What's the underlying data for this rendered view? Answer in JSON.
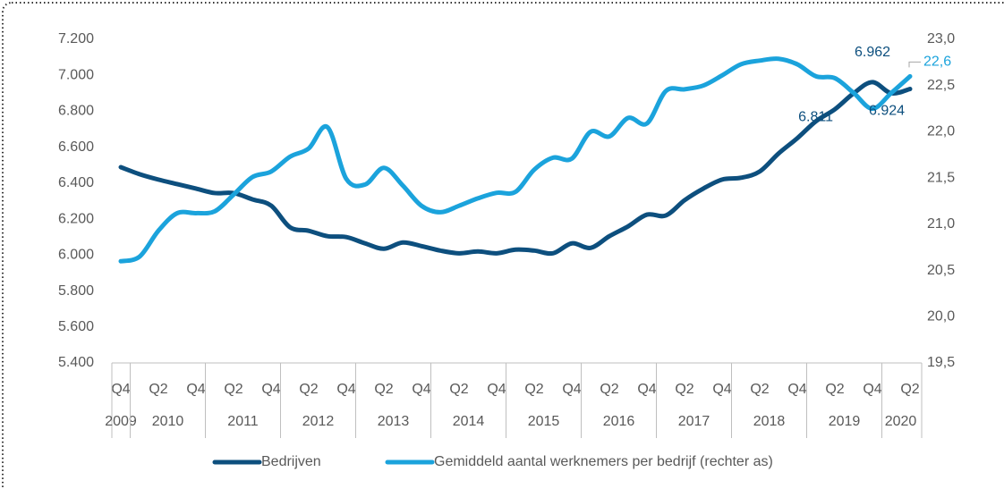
{
  "chart_data": {
    "type": "line",
    "categories": [
      "Q4",
      null,
      "Q2",
      null,
      "Q4",
      null,
      "Q2",
      null,
      "Q4",
      null,
      "Q2",
      null,
      "Q4",
      null,
      "Q2",
      null,
      "Q4",
      null,
      "Q2",
      null,
      "Q4",
      null,
      "Q2",
      null,
      "Q4",
      null,
      "Q2",
      null,
      "Q4",
      null,
      "Q2",
      null,
      "Q4",
      null,
      "Q2",
      null,
      "Q4",
      null,
      "Q2",
      null,
      "Q4",
      null,
      "Q2"
    ],
    "year_groups": [
      "2009",
      "2010",
      "2011",
      "2012",
      "2013",
      "2014",
      "2015",
      "2016",
      "2017",
      "2018",
      "2019",
      "2020"
    ],
    "series": [
      {
        "name": "Bedrijven",
        "color": "#0d4f7e",
        "axis": "y",
        "values": [
          6489,
          6450,
          6420,
          6395,
          6370,
          6345,
          6345,
          6310,
          6275,
          6155,
          6135,
          6105,
          6100,
          6065,
          6035,
          6070,
          6050,
          6025,
          6010,
          6020,
          6010,
          6030,
          6025,
          6010,
          6065,
          6040,
          6105,
          6160,
          6225,
          6220,
          6305,
          6370,
          6420,
          6430,
          6465,
          6565,
          6650,
          6745,
          6811,
          6900,
          6962,
          6900,
          6924
        ],
        "value_labels": [
          null,
          null,
          null,
          null,
          null,
          null,
          null,
          null,
          null,
          null,
          null,
          null,
          null,
          null,
          null,
          null,
          null,
          null,
          null,
          null,
          null,
          null,
          null,
          null,
          null,
          null,
          null,
          null,
          null,
          null,
          null,
          null,
          null,
          null,
          null,
          null,
          null,
          null,
          "6.811",
          null,
          "6.962",
          null,
          "6.924"
        ]
      },
      {
        "name": "Gemiddeld aantal werknemers per bedrijf (rechter as)",
        "color": "#1ba3dc",
        "axis": "y2",
        "values": [
          20.6,
          20.65,
          20.93,
          21.12,
          21.12,
          21.14,
          21.32,
          21.51,
          21.57,
          21.73,
          21.82,
          22.05,
          21.49,
          21.43,
          21.61,
          21.42,
          21.2,
          21.13,
          21.2,
          21.28,
          21.34,
          21.35,
          21.59,
          21.72,
          21.71,
          22.0,
          21.95,
          22.15,
          22.09,
          22.44,
          22.46,
          22.5,
          22.61,
          22.73,
          22.77,
          22.79,
          22.73,
          22.6,
          22.58,
          22.42,
          22.25,
          22.42,
          22.6
        ],
        "value_labels": [
          null,
          null,
          null,
          null,
          null,
          null,
          null,
          null,
          null,
          null,
          null,
          null,
          null,
          null,
          null,
          null,
          null,
          null,
          null,
          null,
          null,
          null,
          null,
          null,
          null,
          null,
          null,
          null,
          null,
          null,
          null,
          null,
          null,
          null,
          null,
          null,
          null,
          null,
          null,
          null,
          null,
          null,
          "22,6"
        ]
      }
    ],
    "ylim": [
      5400,
      7200
    ],
    "yticks": [
      {
        "value": 5400,
        "label": "5.400"
      },
      {
        "value": 5600,
        "label": "5.600"
      },
      {
        "value": 5800,
        "label": "5.800"
      },
      {
        "value": 6000,
        "label": "6.000"
      },
      {
        "value": 6200,
        "label": "6.200"
      },
      {
        "value": 6400,
        "label": "6.400"
      },
      {
        "value": 6600,
        "label": "6.600"
      },
      {
        "value": 6800,
        "label": "6.800"
      },
      {
        "value": 7000,
        "label": "7.000"
      },
      {
        "value": 7200,
        "label": "7.200"
      }
    ],
    "y2lim": [
      19.5,
      23.0
    ],
    "y2ticks": [
      {
        "value": 19.5,
        "label": "19,5"
      },
      {
        "value": 20.0,
        "label": "20,0"
      },
      {
        "value": 20.5,
        "label": "20,5"
      },
      {
        "value": 21.0,
        "label": "21,0"
      },
      {
        "value": 21.5,
        "label": "21,5"
      },
      {
        "value": 22.0,
        "label": "22,0"
      },
      {
        "value": 22.5,
        "label": "22,5"
      },
      {
        "value": 23.0,
        "label": "23,0"
      }
    ],
    "grid": false,
    "legend": "bottom"
  }
}
